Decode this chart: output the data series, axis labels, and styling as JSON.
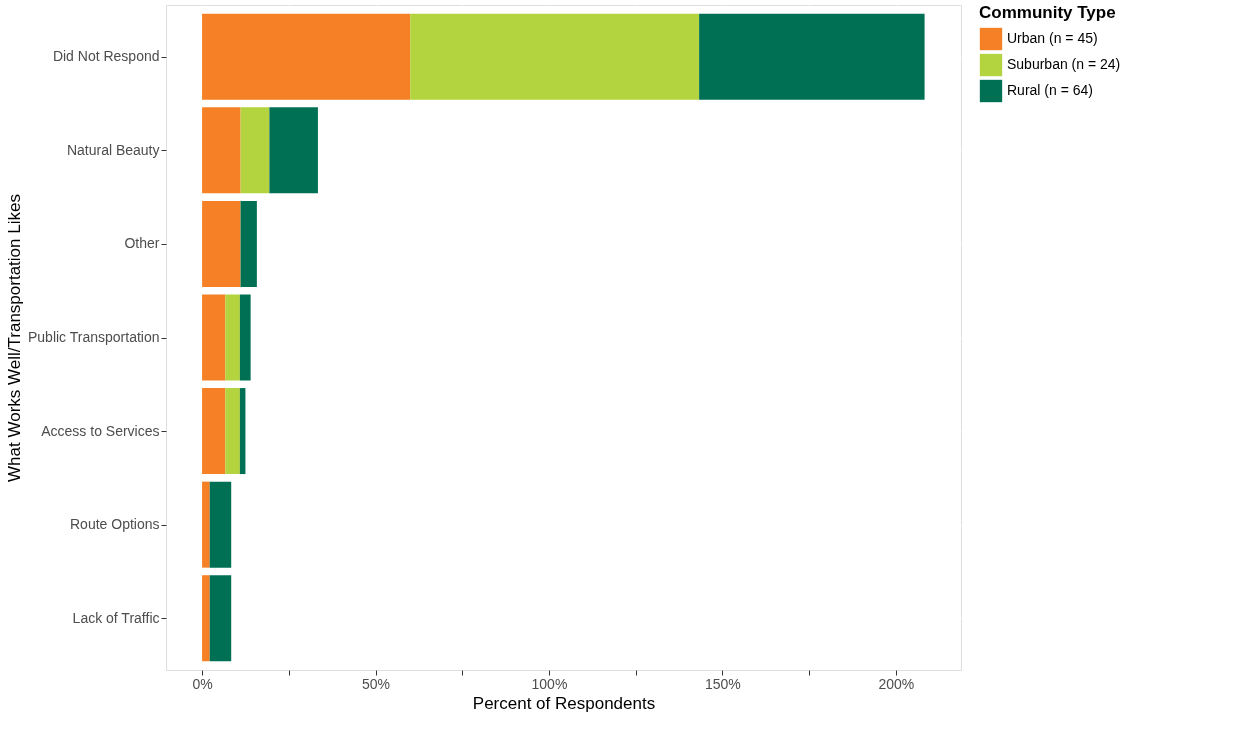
{
  "chart_data": {
    "type": "bar",
    "orientation": "horizontal",
    "stacked": true,
    "xlabel": "Percent of Respondents",
    "ylabel": "What Works Well/Transportation Likes",
    "legend_title": "Community Type",
    "categories": [
      "Did Not Respond",
      "Natural Beauty",
      "Other",
      "Public Transportation",
      "Access to Services",
      "Route Options",
      "Lack of Traffic"
    ],
    "series": [
      {
        "name": "Urban (n = 45)",
        "color": "#f58025",
        "values": [
          60,
          11.1,
          11.1,
          6.7,
          6.7,
          2.2,
          2.2
        ]
      },
      {
        "name": "Suburban (n = 24)",
        "color": "#b3d33f",
        "values": [
          83.3,
          8.3,
          0,
          4.2,
          4.2,
          0,
          0
        ]
      },
      {
        "name": "Rural (n = 64)",
        "color": "#007054",
        "values": [
          65,
          14,
          4.7,
          3.1,
          1.6,
          6.2,
          6.2
        ]
      }
    ],
    "xlim": [
      -10.4,
      218.8
    ],
    "xticks": [
      {
        "value": 0,
        "label": "0%"
      },
      {
        "value": 25,
        "label": null
      },
      {
        "value": 50,
        "label": "50%"
      },
      {
        "value": 75,
        "label": null
      },
      {
        "value": 100,
        "label": "100%"
      },
      {
        "value": 125,
        "label": null
      },
      {
        "value": 150,
        "label": "150%"
      },
      {
        "value": 175,
        "label": null
      },
      {
        "value": 200,
        "label": "200%"
      }
    ],
    "grid": true,
    "legend": "right"
  }
}
